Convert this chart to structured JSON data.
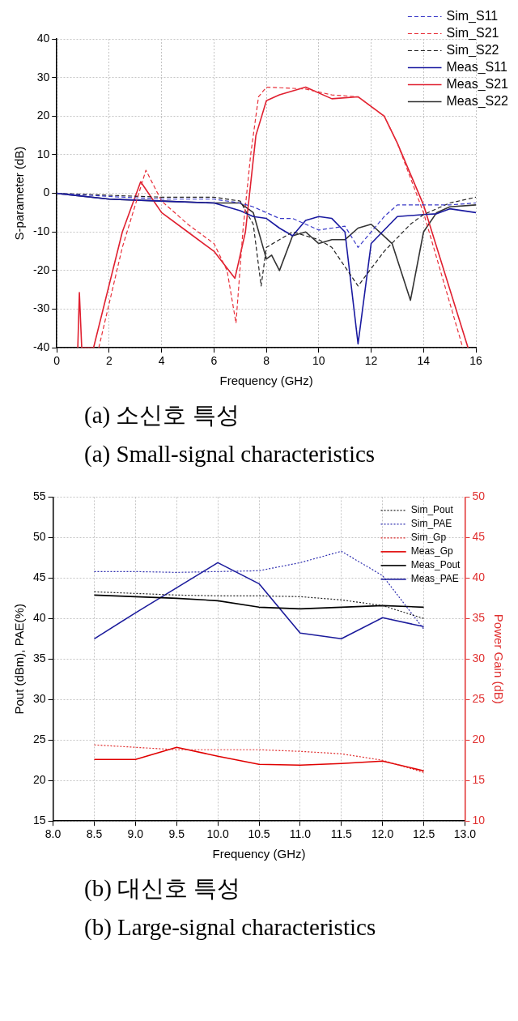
{
  "chart_data": [
    {
      "type": "line",
      "xlabel": "Frequency (GHz)",
      "ylabel": "S-parameter (dB)",
      "xlim": [
        0,
        16
      ],
      "xticks": [
        0,
        2,
        4,
        6,
        8,
        10,
        12,
        14,
        16
      ],
      "ylim": [
        -40,
        40
      ],
      "yticks": [
        -40,
        -30,
        -20,
        -10,
        0,
        10,
        20,
        30,
        40
      ],
      "grid": true,
      "legend": "top right",
      "marker": "none",
      "annotations": [
        "(a) 소신호 특성",
        "(a) Small-signal characteristics"
      ],
      "series": [
        {
          "name": "Sim_S11",
          "color": "#3a3ac8",
          "line_style": "dashed",
          "x": [
            0,
            2,
            4,
            6,
            7,
            7.5,
            8,
            8.5,
            9,
            10,
            11,
            11.5,
            12,
            12.5,
            13,
            14,
            15,
            16
          ],
          "values": [
            0,
            -0.8,
            -1.5,
            -1.5,
            -2.5,
            -3.5,
            -5,
            -6.5,
            -6.5,
            -9.5,
            -8.5,
            -14,
            -10,
            -6,
            -3,
            -3,
            -3,
            -2.5
          ]
        },
        {
          "name": "Sim_S21",
          "color": "#e8303a",
          "line_style": "dashed",
          "x": [
            1.6,
            2.5,
            3.4,
            4,
            5,
            6,
            6.5,
            6.84,
            7.1,
            7.4,
            7.7,
            8,
            9,
            9.5,
            10.5,
            11.5,
            12,
            12.5,
            13,
            14,
            15.5
          ],
          "values": [
            -40,
            -14,
            6,
            -2,
            -8,
            -13,
            -20,
            -33.6,
            -10,
            10,
            25,
            27.5,
            27.2,
            27,
            25.5,
            25,
            22.5,
            20,
            13,
            -5,
            -40
          ]
        },
        {
          "name": "Sim_S22",
          "color": "#222222",
          "line_style": "dashed",
          "x": [
            0,
            2,
            4,
            6,
            7,
            7.5,
            7.8,
            8,
            8.5,
            9,
            10,
            10.5,
            11.5,
            12.5,
            13.5,
            14,
            15,
            16
          ],
          "values": [
            0,
            -0.5,
            -1,
            -1,
            -2,
            -8,
            -24,
            -14,
            -12,
            -10,
            -12,
            -14,
            -24,
            -15,
            -8,
            -5.5,
            -2.5,
            -1
          ]
        },
        {
          "name": "Meas_S11",
          "color": "#1a1aa0",
          "line_style": "solid",
          "x": [
            0,
            2,
            4,
            6,
            7,
            7.5,
            8,
            8.5,
            9,
            9.5,
            10,
            10.5,
            11,
            11.5,
            12,
            13,
            14,
            14.5,
            15,
            16
          ],
          "values": [
            0,
            -1.5,
            -2,
            -2.5,
            -4.5,
            -6,
            -6.5,
            -9,
            -11,
            -7,
            -6,
            -6.5,
            -10,
            -39,
            -13,
            -6,
            -5.5,
            -5.3,
            -4,
            -5
          ]
        },
        {
          "name": "Meas_S21",
          "color": "#e02030",
          "line_style": "solid",
          "x": [
            0.8,
            0.86,
            0.95,
            1.4,
            2.5,
            3.2,
            4,
            5,
            6,
            6.8,
            7.2,
            7.6,
            8,
            8.5,
            9.5,
            10.5,
            11.5,
            12.5,
            13,
            14,
            15.7
          ],
          "values": [
            -40,
            -25.7,
            -40,
            -40,
            -10,
            3,
            -5,
            -10,
            -15,
            -22,
            -10,
            15,
            24,
            25.5,
            27.5,
            24.5,
            25,
            20,
            13,
            -3,
            -40
          ]
        },
        {
          "name": "Meas_S22",
          "color": "#333333",
          "line_style": "solid",
          "x": [
            0,
            2,
            4,
            6,
            7,
            7.5,
            8,
            8.2,
            8.5,
            9,
            9.5,
            10,
            10.5,
            11,
            11.5,
            12,
            12.8,
            13.5,
            14,
            14.5,
            15,
            16
          ],
          "values": [
            0,
            -1.5,
            -2,
            -2.5,
            -2.5,
            -5,
            -17,
            -16,
            -20,
            -11,
            -10,
            -13,
            -12,
            -12,
            -9,
            -8,
            -13,
            -27.7,
            -10,
            -5,
            -3.5,
            -3
          ]
        }
      ]
    },
    {
      "type": "line",
      "xlabel": "Frequency (GHz)",
      "ylabel": "Pout (dBm), PAE(%)",
      "y2label": "Power Gain (dB)",
      "xlim": [
        8,
        13
      ],
      "xticks": [
        {
          "value": 8,
          "label": "8.0"
        },
        {
          "value": 8.5,
          "label": "8.5"
        },
        {
          "value": 9,
          "label": "9.0"
        },
        {
          "value": 9.5,
          "label": "9.5"
        },
        {
          "value": 10,
          "label": "10.0"
        },
        {
          "value": 10.5,
          "label": "10.5"
        },
        {
          "value": 11,
          "label": "11.0"
        },
        {
          "value": 11.5,
          "label": "11.5"
        },
        {
          "value": 12,
          "label": "12.0"
        },
        {
          "value": 12.5,
          "label": "12.5"
        },
        {
          "value": 13,
          "label": "13.0"
        }
      ],
      "ylim": [
        15,
        55
      ],
      "yticks": [
        15,
        20,
        25,
        30,
        35,
        40,
        45,
        50,
        55
      ],
      "y2lim": [
        10,
        50
      ],
      "y2ticks": [
        10,
        15,
        20,
        25,
        30,
        35,
        40,
        45,
        50
      ],
      "grid": true,
      "legend": "top right",
      "marker": "none",
      "annotations": [
        "(b) 대신호 특성",
        "(b) Large-signal characteristics"
      ],
      "x": [
        8.5,
        9,
        9.5,
        10,
        10.5,
        11,
        11.5,
        12,
        12.5
      ],
      "series": [
        {
          "name": "Sim_Pout",
          "color": "#222222",
          "line_style": "dotted",
          "values": [
            43.3,
            43.1,
            42.9,
            42.8,
            42.8,
            42.7,
            42.3,
            41.6,
            40
          ]
        },
        {
          "name": "Sim_PAE",
          "color": "#3030b0",
          "line_style": "dotted",
          "values": [
            45.8,
            45.8,
            45.7,
            45.8,
            45.9,
            46.9,
            48.3,
            45.3,
            38.7
          ]
        },
        {
          "name": "Sim_Gp",
          "color": "#e03030",
          "line_style": "dotted",
          "axis": "y2",
          "values": [
            19.4,
            19.1,
            18.8,
            18.8,
            18.8,
            18.6,
            18.3,
            17.5,
            16
          ]
        },
        {
          "name": "Meas_Gp",
          "color": "#e00000",
          "line_style": "solid",
          "axis": "y2",
          "values": [
            17.6,
            17.6,
            19.1,
            18,
            17,
            16.9,
            17.1,
            17.4,
            16.2
          ]
        },
        {
          "name": "Meas_Pout",
          "color": "#000000",
          "line_style": "solid",
          "values": [
            42.9,
            42.7,
            42.5,
            42.2,
            41.4,
            41.2,
            41.4,
            41.6,
            41.4
          ]
        },
        {
          "name": "Meas_PAE",
          "color": "#1c1c9c",
          "line_style": "solid",
          "values": [
            37.5,
            40.7,
            43.8,
            46.9,
            44.3,
            38.2,
            37.5,
            40.1,
            39
          ]
        }
      ]
    }
  ]
}
